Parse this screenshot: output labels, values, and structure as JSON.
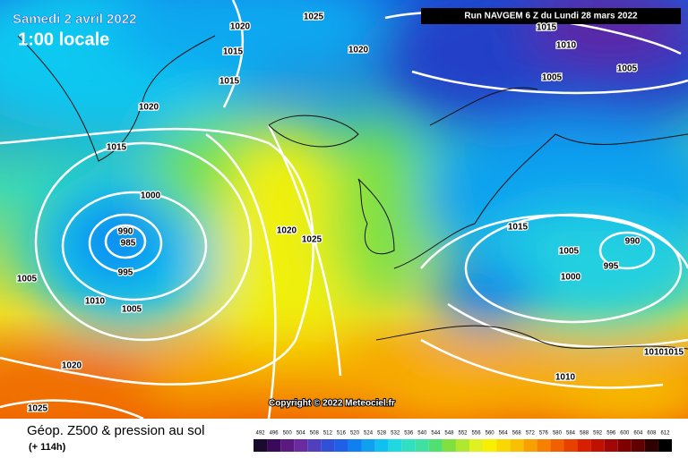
{
  "header": {
    "date": "Samedi 2 avril 2022",
    "time": "1:00 locale",
    "run": "Run NAVGEM 6 Z du Lundi 28 mars 2022"
  },
  "copyright": "Copyright © 2022 Meteociel.fr",
  "footer": {
    "title": "Géop. Z500 & pression au sol",
    "lead": "(+ 114h)"
  },
  "isobar_labels": [
    "1025",
    "1020",
    "1015",
    "1015",
    "1020",
    "1020",
    "1015",
    "1000",
    "990",
    "985",
    "995",
    "1005",
    "1010",
    "1005",
    "1020",
    "1025",
    "1020",
    "1025",
    "1015",
    "1010",
    "1005",
    "1005",
    "1015",
    "1005",
    "995",
    "990",
    "1000",
    "1010",
    "1010",
    "1015"
  ],
  "colorbar_labels": [
    "492",
    "496",
    "500",
    "504",
    "508",
    "512",
    "516",
    "520",
    "524",
    "528",
    "532",
    "536",
    "540",
    "544",
    "548",
    "552",
    "556",
    "560",
    "564",
    "568",
    "572",
    "576",
    "580",
    "584",
    "588",
    "592",
    "596",
    "600",
    "604",
    "608",
    "612"
  ]
}
